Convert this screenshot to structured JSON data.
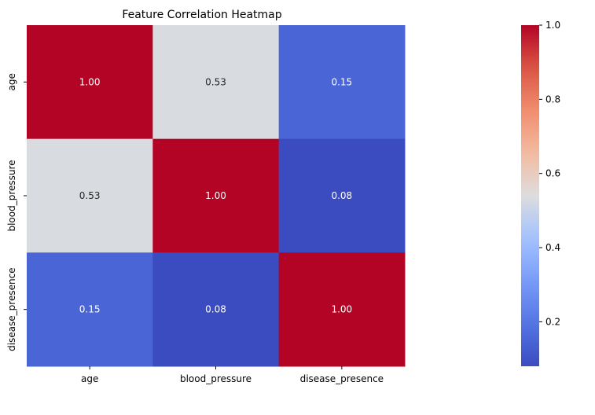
{
  "chart_data": {
    "type": "heatmap",
    "title": "Feature Correlation Heatmap",
    "xlabel": "",
    "ylabel": "",
    "x_categories": [
      "age",
      "blood_pressure",
      "disease_presence"
    ],
    "y_categories": [
      "age",
      "blood_pressure",
      "disease_presence"
    ],
    "values": [
      [
        1.0,
        0.53,
        0.15
      ],
      [
        0.53,
        1.0,
        0.08
      ],
      [
        0.15,
        0.08,
        1.0
      ]
    ],
    "value_labels": [
      [
        "1.00",
        "0.53",
        "0.15"
      ],
      [
        "0.53",
        "1.00",
        "0.08"
      ],
      [
        "0.15",
        "0.08",
        "1.00"
      ]
    ],
    "colormap": "coolwarm",
    "colorbar": {
      "range": [
        0.08,
        1.0
      ],
      "ticks": [
        0.2,
        0.4,
        0.6,
        0.8,
        1.0
      ],
      "tick_labels": [
        "0.2",
        "0.4",
        "0.6",
        "0.8",
        "1.0"
      ]
    },
    "grid": false,
    "legend": "colorbar-right"
  }
}
